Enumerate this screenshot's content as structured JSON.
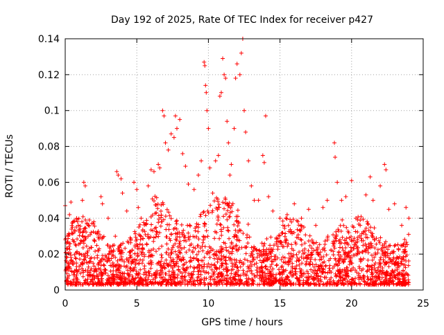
{
  "chart_data": {
    "type": "scatter",
    "title": "Day 192 of 2025, Rate Of TEC Index for receiver p427",
    "xlabel": "GPS time / hours",
    "ylabel": "ROTI / TECUs",
    "xlim": [
      0,
      25
    ],
    "ylim": [
      0,
      0.14
    ],
    "xticks": [
      0,
      5,
      10,
      15,
      20,
      25
    ],
    "xtick_labels": [
      "0",
      "5",
      "10",
      "15",
      "20",
      "25"
    ],
    "yticks": [
      0,
      0.02,
      0.04,
      0.06,
      0.08,
      0.1,
      0.12,
      0.14
    ],
    "ytick_labels": [
      "0",
      "0.02",
      "0.04",
      "0.06",
      "0.08",
      "0.1",
      "0.12",
      "0.14"
    ],
    "grid": true,
    "marker": "+",
    "marker_color": "#ff0000",
    "series": [
      {
        "name": "ROTI",
        "points": [
          [
            0.0,
            0.047
          ],
          [
            0.1,
            0.005
          ],
          [
            0.2,
            0.03
          ],
          [
            0.3,
            0.042
          ],
          [
            0.4,
            0.049
          ],
          [
            0.5,
            0.035
          ],
          [
            0.8,
            0.04
          ],
          [
            1.2,
            0.05
          ],
          [
            1.3,
            0.06
          ],
          [
            1.4,
            0.058
          ],
          [
            1.6,
            0.03
          ],
          [
            2.0,
            0.038
          ],
          [
            2.5,
            0.052
          ],
          [
            2.6,
            0.048
          ],
          [
            3.0,
            0.04
          ],
          [
            3.5,
            0.03
          ],
          [
            3.6,
            0.066
          ],
          [
            3.7,
            0.064
          ],
          [
            3.9,
            0.062
          ],
          [
            4.0,
            0.054
          ],
          [
            4.3,
            0.044
          ],
          [
            4.8,
            0.06
          ],
          [
            5.0,
            0.056
          ],
          [
            5.1,
            0.046
          ],
          [
            5.3,
            0.04
          ],
          [
            5.8,
            0.058
          ],
          [
            6.0,
            0.067
          ],
          [
            6.2,
            0.066
          ],
          [
            6.5,
            0.07
          ],
          [
            6.6,
            0.068
          ],
          [
            6.8,
            0.1
          ],
          [
            6.9,
            0.097
          ],
          [
            7.0,
            0.082
          ],
          [
            7.2,
            0.078
          ],
          [
            7.4,
            0.087
          ],
          [
            7.6,
            0.085
          ],
          [
            7.7,
            0.097
          ],
          [
            7.8,
            0.09
          ],
          [
            8.0,
            0.095
          ],
          [
            8.2,
            0.076
          ],
          [
            8.4,
            0.069
          ],
          [
            8.6,
            0.059
          ],
          [
            9.0,
            0.056
          ],
          [
            9.3,
            0.064
          ],
          [
            9.5,
            0.072
          ],
          [
            9.7,
            0.127
          ],
          [
            9.75,
            0.125
          ],
          [
            9.8,
            0.114
          ],
          [
            9.85,
            0.11
          ],
          [
            9.9,
            0.1
          ],
          [
            10.0,
            0.09
          ],
          [
            10.1,
            0.068
          ],
          [
            10.3,
            0.054
          ],
          [
            10.5,
            0.072
          ],
          [
            10.7,
            0.075
          ],
          [
            10.8,
            0.108
          ],
          [
            10.9,
            0.11
          ],
          [
            11.0,
            0.129
          ],
          [
            11.1,
            0.12
          ],
          [
            11.2,
            0.118
          ],
          [
            11.3,
            0.094
          ],
          [
            11.4,
            0.082
          ],
          [
            11.5,
            0.064
          ],
          [
            11.6,
            0.07
          ],
          [
            11.8,
            0.09
          ],
          [
            11.9,
            0.118
          ],
          [
            12.0,
            0.126
          ],
          [
            12.2,
            0.12
          ],
          [
            12.3,
            0.132
          ],
          [
            12.4,
            0.14
          ],
          [
            12.5,
            0.1
          ],
          [
            12.6,
            0.088
          ],
          [
            12.8,
            0.072
          ],
          [
            13.0,
            0.058
          ],
          [
            13.2,
            0.05
          ],
          [
            13.5,
            0.05
          ],
          [
            13.8,
            0.075
          ],
          [
            13.9,
            0.071
          ],
          [
            14.0,
            0.097
          ],
          [
            14.2,
            0.052
          ],
          [
            14.5,
            0.044
          ],
          [
            15.0,
            0.04
          ],
          [
            15.5,
            0.042
          ],
          [
            16.0,
            0.048
          ],
          [
            16.5,
            0.04
          ],
          [
            17.0,
            0.045
          ],
          [
            17.5,
            0.036
          ],
          [
            18.0,
            0.046
          ],
          [
            18.3,
            0.05
          ],
          [
            18.8,
            0.082
          ],
          [
            18.85,
            0.074
          ],
          [
            19.0,
            0.06
          ],
          [
            19.3,
            0.05
          ],
          [
            19.6,
            0.052
          ],
          [
            20.0,
            0.061
          ],
          [
            20.3,
            0.04
          ],
          [
            20.6,
            0.036
          ],
          [
            21.0,
            0.053
          ],
          [
            21.3,
            0.063
          ],
          [
            21.5,
            0.05
          ],
          [
            22.0,
            0.058
          ],
          [
            22.3,
            0.07
          ],
          [
            22.4,
            0.067
          ],
          [
            22.6,
            0.045
          ],
          [
            23.0,
            0.048
          ],
          [
            23.5,
            0.036
          ],
          [
            23.8,
            0.046
          ],
          [
            24.0,
            0.04
          ]
        ]
      }
    ]
  }
}
